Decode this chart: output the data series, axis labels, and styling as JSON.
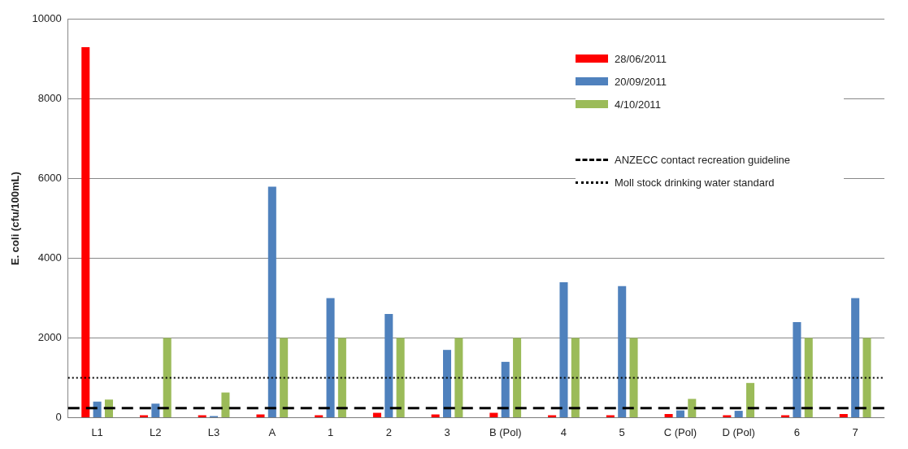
{
  "chart_data": {
    "type": "bar",
    "ylabel": "E. coli (cfu/100mL)",
    "categories": [
      "L1",
      "L2",
      "L3",
      "A",
      "1",
      "2",
      "3",
      "B (Pol)",
      "4",
      "5",
      "C (Pol)",
      "D (Pol)",
      "6",
      "7"
    ],
    "series": [
      {
        "name": "28/06/2011",
        "color": "#ff0000",
        "values": [
          9300,
          60,
          60,
          80,
          60,
          120,
          80,
          120,
          60,
          60,
          90,
          60,
          60,
          90
        ]
      },
      {
        "name": "20/09/2011",
        "color": "#4f81bd",
        "values": [
          400,
          350,
          40,
          5800,
          3000,
          2600,
          1700,
          1400,
          3400,
          3300,
          180,
          170,
          2400,
          3000
        ]
      },
      {
        "name": "4/10/2011",
        "color": "#9bbb59",
        "values": [
          450,
          2000,
          630,
          2000,
          2000,
          2000,
          2000,
          2000,
          2000,
          2000,
          470,
          870,
          2000,
          2000
        ]
      }
    ],
    "ylim": [
      0,
      10000
    ],
    "yticks": [
      0,
      2000,
      4000,
      6000,
      8000,
      10000
    ],
    "grid": "y",
    "legend": "top right",
    "ref_lines": [
      {
        "axis": "y",
        "value": 240,
        "label": "ANZECC contact recreation guideline",
        "color": "#000000",
        "line_style": "dashed"
      },
      {
        "axis": "y",
        "value": 1000,
        "label": "Moll stock drinking water standard",
        "color": "#000000",
        "line_style": "dotted"
      }
    ]
  }
}
